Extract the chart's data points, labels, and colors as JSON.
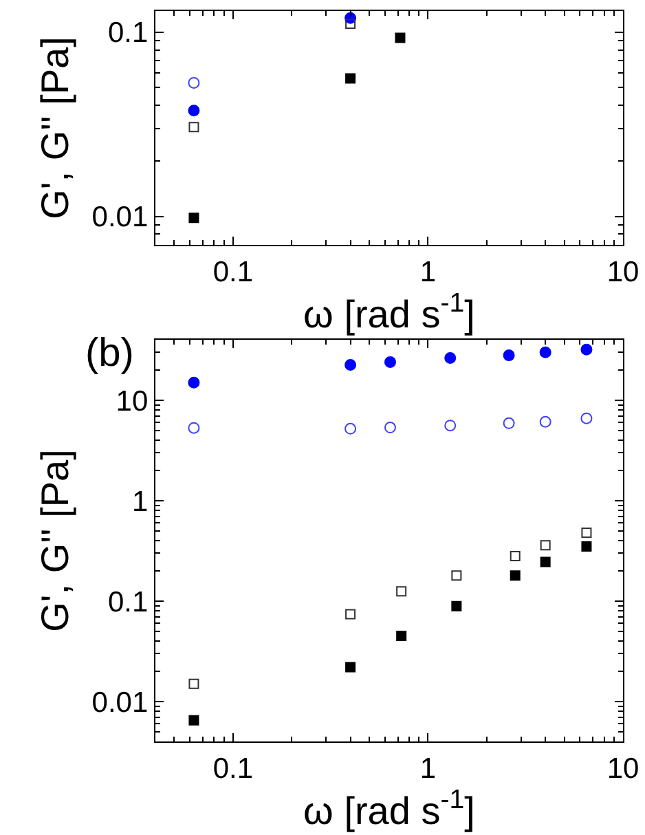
{
  "chart_data": [
    {
      "type": "scatter",
      "log": "xy",
      "xlabel": "ω [rad s$^{-1}$]",
      "ylabel": "G', G'' [Pa]",
      "xlim": [
        0.04,
        10
      ],
      "ylim": [
        0.007,
        0.13
      ],
      "xticks": [
        {
          "value": 0.05,
          "label": null
        },
        {
          "value": 0.06,
          "label": null
        },
        {
          "value": 0.07,
          "label": null
        },
        {
          "value": 0.08,
          "label": null
        },
        {
          "value": 0.09,
          "label": null
        },
        0.1,
        {
          "value": 0.2,
          "label": null
        },
        {
          "value": 0.3,
          "label": null
        },
        {
          "value": 0.4,
          "label": null
        },
        {
          "value": 0.5,
          "label": null
        },
        {
          "value": 0.6,
          "label": null
        },
        {
          "value": 0.7,
          "label": null
        },
        {
          "value": 0.8,
          "label": null
        },
        {
          "value": 0.9,
          "label": null
        },
        1,
        {
          "value": 2,
          "label": null
        },
        {
          "value": 3,
          "label": null
        },
        {
          "value": 4,
          "label": null
        },
        {
          "value": 5,
          "label": null
        },
        {
          "value": 6,
          "label": null
        },
        {
          "value": 7,
          "label": null
        },
        {
          "value": 8,
          "label": null
        },
        {
          "value": 9,
          "label": null
        },
        10
      ],
      "yticks": [
        {
          "value": 0.008,
          "label": null
        },
        {
          "value": 0.009,
          "label": null
        },
        0.01,
        {
          "value": 0.02,
          "label": null
        },
        {
          "value": 0.03,
          "label": null
        },
        {
          "value": 0.04,
          "label": null
        },
        {
          "value": 0.05,
          "label": null
        },
        {
          "value": 0.06,
          "label": null
        },
        {
          "value": 0.07,
          "label": null
        },
        {
          "value": 0.08,
          "label": null
        },
        {
          "value": 0.09,
          "label": null
        },
        0.1
      ],
      "grid": false,
      "series": [
        {
          "color": "#0000ff",
          "marker": "circle",
          "x": [
            0.063,
            0.4
          ],
          "values": [
            0.0375,
            0.119
          ]
        },
        {
          "color": "#4040ff",
          "marker": "circle-open",
          "x": [
            0.063
          ],
          "values": [
            0.053
          ]
        },
        {
          "color": "#333333",
          "marker": "square-open",
          "x": [
            0.063,
            0.4
          ],
          "values": [
            0.0305,
            0.111
          ]
        },
        {
          "color": "#000000",
          "marker": "square",
          "x": [
            0.063,
            0.4,
            0.72
          ],
          "values": [
            0.0098,
            0.056,
            0.093
          ]
        }
      ]
    },
    {
      "type": "scatter",
      "log": "xy",
      "title": "(b)",
      "xlabel": "ω [rad s$^{-1}$]",
      "ylabel": "G', G'' [Pa]",
      "xlim": [
        0.04,
        10
      ],
      "ylim": [
        0.004,
        40
      ],
      "xticks": [
        {
          "value": 0.05,
          "label": null
        },
        {
          "value": 0.06,
          "label": null
        },
        {
          "value": 0.07,
          "label": null
        },
        {
          "value": 0.08,
          "label": null
        },
        {
          "value": 0.09,
          "label": null
        },
        0.1,
        {
          "value": 0.2,
          "label": null
        },
        {
          "value": 0.3,
          "label": null
        },
        {
          "value": 0.4,
          "label": null
        },
        {
          "value": 0.5,
          "label": null
        },
        {
          "value": 0.6,
          "label": null
        },
        {
          "value": 0.7,
          "label": null
        },
        {
          "value": 0.8,
          "label": null
        },
        {
          "value": 0.9,
          "label": null
        },
        1,
        {
          "value": 2,
          "label": null
        },
        {
          "value": 3,
          "label": null
        },
        {
          "value": 4,
          "label": null
        },
        {
          "value": 5,
          "label": null
        },
        {
          "value": 6,
          "label": null
        },
        {
          "value": 7,
          "label": null
        },
        {
          "value": 8,
          "label": null
        },
        {
          "value": 9,
          "label": null
        },
        10
      ],
      "yticks": [
        {
          "value": 0.005,
          "label": null
        },
        {
          "value": 0.006,
          "label": null
        },
        {
          "value": 0.007,
          "label": null
        },
        {
          "value": 0.008,
          "label": null
        },
        {
          "value": 0.009,
          "label": null
        },
        0.01,
        {
          "value": 0.02,
          "label": null
        },
        {
          "value": 0.03,
          "label": null
        },
        {
          "value": 0.04,
          "label": null
        },
        {
          "value": 0.05,
          "label": null
        },
        {
          "value": 0.06,
          "label": null
        },
        {
          "value": 0.07,
          "label": null
        },
        {
          "value": 0.08,
          "label": null
        },
        {
          "value": 0.09,
          "label": null
        },
        0.1,
        {
          "value": 0.2,
          "label": null
        },
        {
          "value": 0.3,
          "label": null
        },
        {
          "value": 0.4,
          "label": null
        },
        {
          "value": 0.5,
          "label": null
        },
        {
          "value": 0.6,
          "label": null
        },
        {
          "value": 0.7,
          "label": null
        },
        {
          "value": 0.8,
          "label": null
        },
        {
          "value": 0.9,
          "label": null
        },
        1,
        {
          "value": 2,
          "label": null
        },
        {
          "value": 3,
          "label": null
        },
        {
          "value": 4,
          "label": null
        },
        {
          "value": 5,
          "label": null
        },
        {
          "value": 6,
          "label": null
        },
        {
          "value": 7,
          "label": null
        },
        {
          "value": 8,
          "label": null
        },
        {
          "value": 9,
          "label": null
        },
        10,
        {
          "value": 20,
          "label": null
        },
        {
          "value": 30,
          "label": null
        }
      ],
      "grid": false,
      "series": [
        {
          "color": "#0000ff",
          "marker": "circle",
          "x": [
            0.063,
            0.4,
            0.64,
            1.3,
            2.6,
            4.0,
            6.5
          ],
          "values": [
            15,
            22.5,
            24,
            26.3,
            28,
            30,
            32
          ]
        },
        {
          "color": "#4040ff",
          "marker": "circle-open",
          "x": [
            0.063,
            0.4,
            0.64,
            1.3,
            2.6,
            4.0,
            6.5
          ],
          "values": [
            5.3,
            5.2,
            5.35,
            5.6,
            5.9,
            6.1,
            6.6
          ]
        },
        {
          "color": "#333333",
          "marker": "square-open",
          "x": [
            0.063,
            0.4,
            0.73,
            1.4,
            2.8,
            4.0,
            6.5
          ],
          "values": [
            0.015,
            0.074,
            0.125,
            0.18,
            0.28,
            0.36,
            0.48
          ]
        },
        {
          "color": "#000000",
          "marker": "square",
          "x": [
            0.063,
            0.4,
            0.73,
            1.4,
            2.8,
            4.0,
            6.5
          ],
          "values": [
            0.0065,
            0.022,
            0.045,
            0.089,
            0.18,
            0.245,
            0.35
          ]
        }
      ]
    }
  ]
}
